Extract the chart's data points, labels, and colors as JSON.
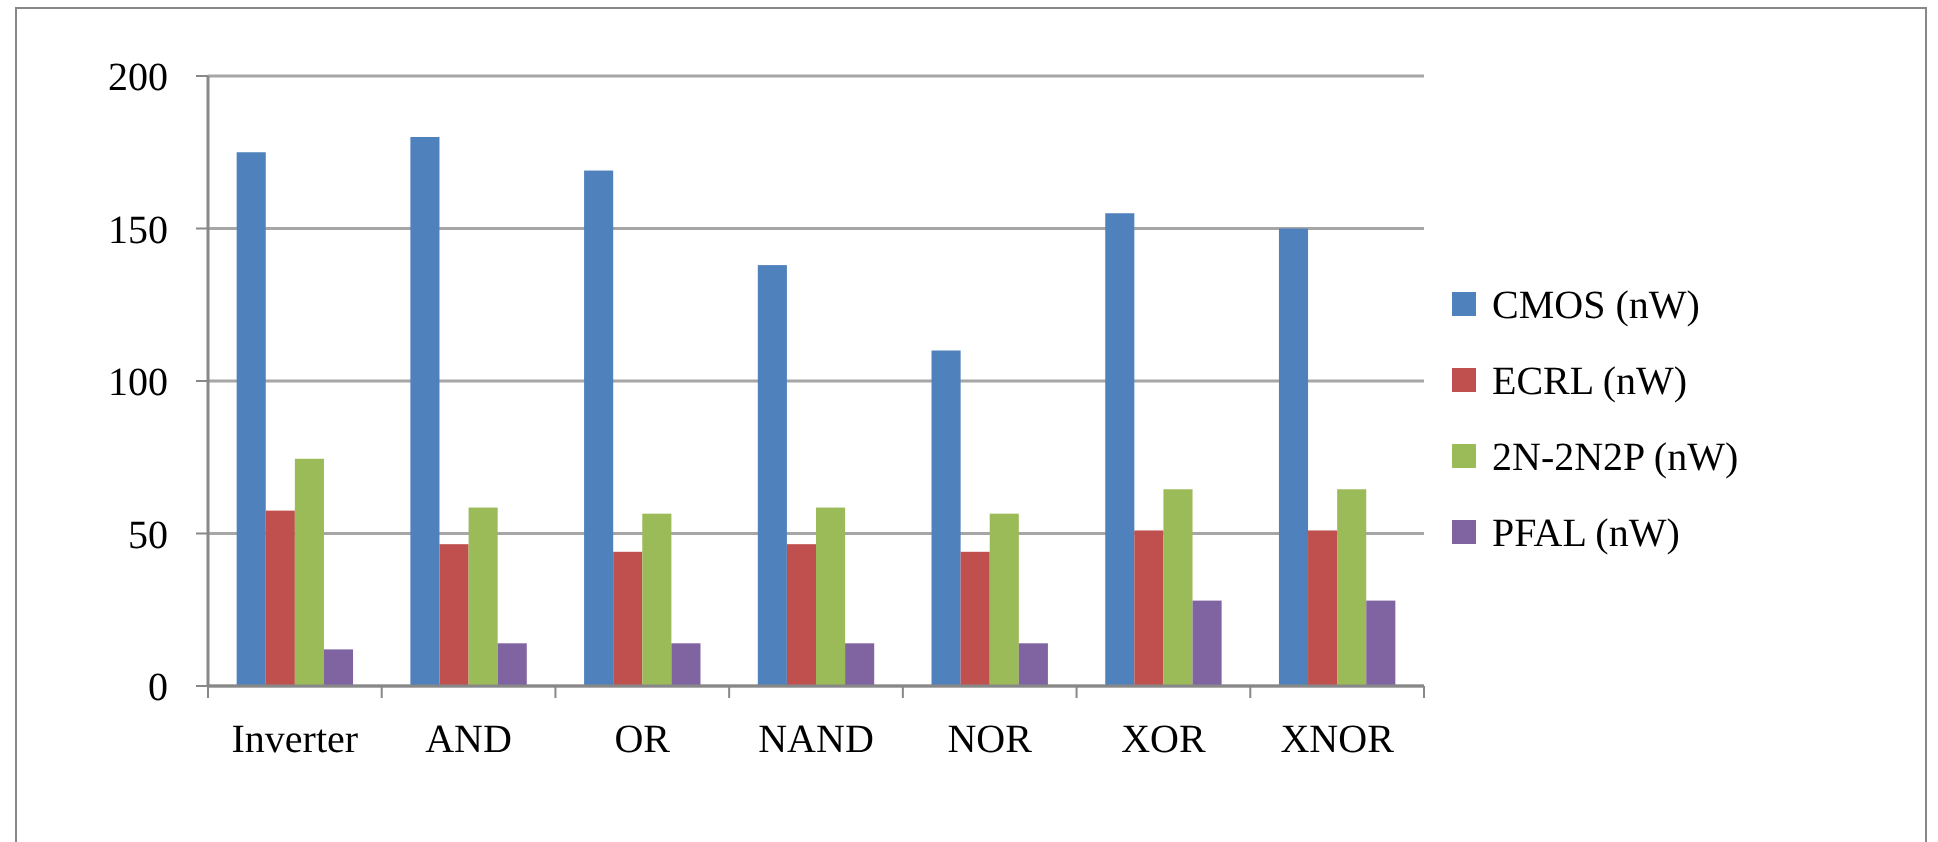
{
  "chart_data": {
    "type": "bar",
    "categories": [
      "Inverter",
      "AND",
      "OR",
      "NAND",
      "NOR",
      "XOR",
      "XNOR"
    ],
    "series": [
      {
        "name": "CMOS (nW)",
        "color": "#4f81bd",
        "values": [
          175,
          180,
          169,
          138,
          110,
          155,
          150
        ]
      },
      {
        "name": "ECRL (nW)",
        "color": "#c0504d",
        "values": [
          57.5,
          46.5,
          44,
          46.5,
          44,
          51,
          51
        ]
      },
      {
        "name": "2N-2N2P (nW)",
        "color": "#9bbb59",
        "values": [
          74.5,
          58.5,
          56.5,
          58.5,
          56.5,
          64.5,
          64.5
        ]
      },
      {
        "name": "PFAL (nW)",
        "color": "#8064a2",
        "values": [
          12,
          14,
          14,
          14,
          14,
          28,
          28
        ]
      }
    ],
    "ylim": [
      0,
      200
    ],
    "yticks": [
      0,
      50,
      100,
      150,
      200
    ],
    "grid": "y",
    "legend": "right"
  }
}
